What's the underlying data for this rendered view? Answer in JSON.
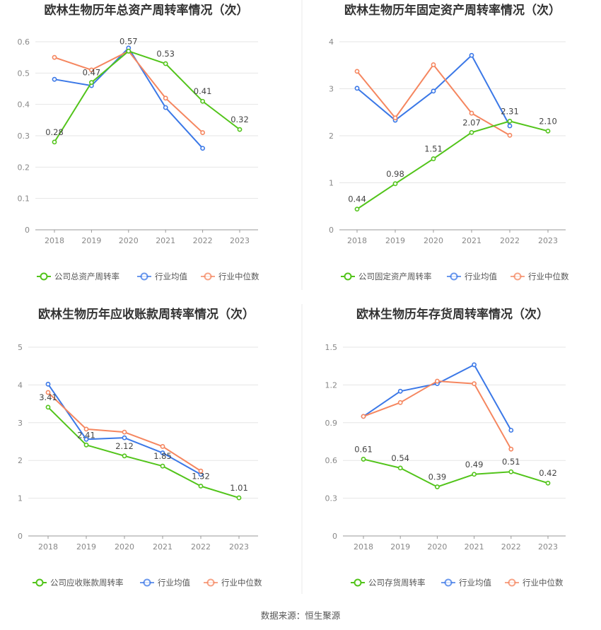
{
  "colors": {
    "company": "#52c41a",
    "avg": "#3b78e7",
    "median": "#f5865f"
  },
  "source_text": "数据来源：恒生聚源",
  "chart_data": [
    {
      "type": "line",
      "title": "欧林生物历年总资产周转率情况（次）",
      "categories": [
        "2018",
        "2019",
        "2020",
        "2021",
        "2022",
        "2023"
      ],
      "ylim": [
        0,
        0.6
      ],
      "yticks": [
        "0",
        "0.1",
        "0.2",
        "0.3",
        "0.4",
        "0.5",
        "0.6"
      ],
      "series": [
        {
          "name": "公司总资产周转率",
          "key": "company",
          "values": [
            0.28,
            0.47,
            0.57,
            0.53,
            0.41,
            0.32
          ],
          "labels": [
            "0.28",
            "0.47",
            "0.57",
            "0.53",
            "0.41",
            "0.32"
          ]
        },
        {
          "name": "行业均值",
          "key": "avg",
          "values": [
            0.48,
            0.46,
            0.58,
            0.39,
            0.26,
            null
          ]
        },
        {
          "name": "行业中位数",
          "key": "median",
          "values": [
            0.55,
            0.51,
            0.57,
            0.42,
            0.31,
            null
          ]
        }
      ]
    },
    {
      "type": "line",
      "title": "欧林生物历年固定资产周转率情况（次）",
      "categories": [
        "2018",
        "2019",
        "2020",
        "2021",
        "2022",
        "2023"
      ],
      "ylim": [
        0,
        4
      ],
      "yticks": [
        "0",
        "1",
        "2",
        "3",
        "4"
      ],
      "series": [
        {
          "name": "公司固定资产周转率",
          "key": "company",
          "values": [
            0.44,
            0.98,
            1.51,
            2.07,
            2.31,
            2.1
          ],
          "labels": [
            "0.44",
            "0.98",
            "1.51",
            "2.07",
            "2.31",
            "2.10"
          ]
        },
        {
          "name": "行业均值",
          "key": "avg",
          "values": [
            3.01,
            2.33,
            2.95,
            3.71,
            2.21,
            null
          ]
        },
        {
          "name": "行业中位数",
          "key": "median",
          "values": [
            3.37,
            2.38,
            3.51,
            2.48,
            2.01,
            null
          ]
        }
      ]
    },
    {
      "type": "line",
      "title": "欧林生物历年应收账款周转率情况（次）",
      "categories": [
        "2018",
        "2019",
        "2020",
        "2021",
        "2022",
        "2023"
      ],
      "ylim": [
        0,
        5
      ],
      "yticks": [
        "0",
        "1",
        "2",
        "3",
        "4",
        "5"
      ],
      "series": [
        {
          "name": "公司应收账款周转率",
          "key": "company",
          "values": [
            3.41,
            2.41,
            2.12,
            1.85,
            1.32,
            1.01
          ],
          "labels": [
            "3.41",
            "2.41",
            "2.12",
            "1.85",
            "1.32",
            "1.01"
          ]
        },
        {
          "name": "行业均值",
          "key": "avg",
          "values": [
            4.02,
            2.56,
            2.6,
            2.2,
            1.63,
            null
          ]
        },
        {
          "name": "行业中位数",
          "key": "median",
          "values": [
            3.8,
            2.83,
            2.75,
            2.37,
            1.72,
            null
          ]
        }
      ]
    },
    {
      "type": "line",
      "title": "欧林生物历年存货周转率情况（次）",
      "categories": [
        "2018",
        "2019",
        "2020",
        "2021",
        "2022",
        "2023"
      ],
      "ylim": [
        0,
        1.5
      ],
      "yticks": [
        "0",
        "0.3",
        "0.6",
        "0.9",
        "1.2",
        "1.5"
      ],
      "series": [
        {
          "name": "公司存货周转率",
          "key": "company",
          "values": [
            0.61,
            0.54,
            0.39,
            0.49,
            0.51,
            0.42
          ],
          "labels": [
            "0.61",
            "0.54",
            "0.39",
            "0.49",
            "0.51",
            "0.42"
          ]
        },
        {
          "name": "行业均值",
          "key": "avg",
          "values": [
            0.95,
            1.15,
            1.21,
            1.36,
            0.84,
            null
          ]
        },
        {
          "name": "行业中位数",
          "key": "median",
          "values": [
            0.95,
            1.06,
            1.23,
            1.21,
            0.69,
            null
          ]
        }
      ]
    }
  ]
}
